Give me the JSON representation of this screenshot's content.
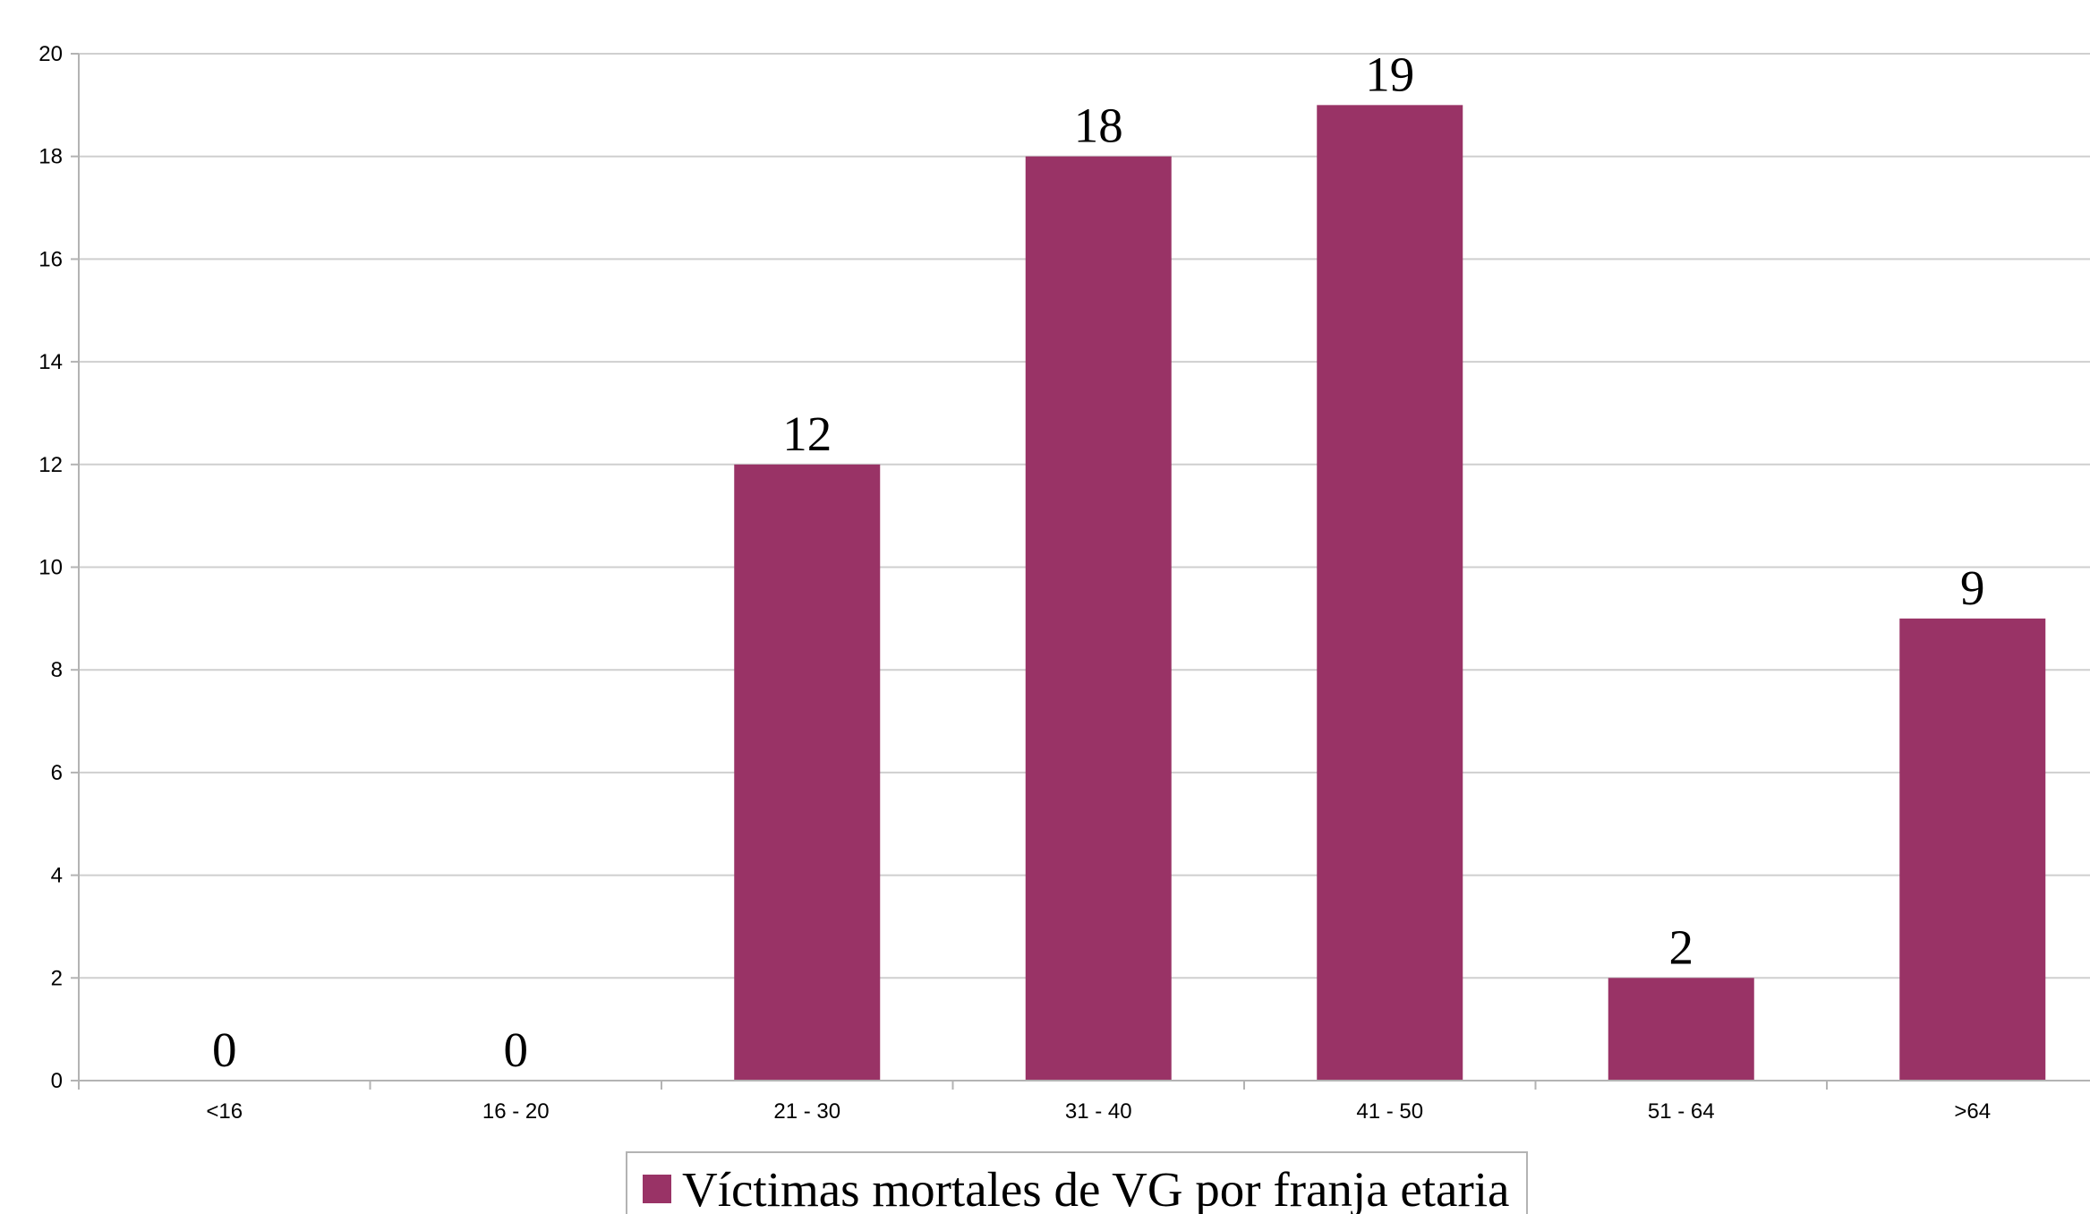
{
  "chart_data": {
    "type": "bar",
    "categories": [
      "<16",
      "16 - 20",
      "21 - 30",
      "31 - 40",
      "41 - 50",
      "51 - 64",
      ">64"
    ],
    "series": [
      {
        "name": "Víctimas mortales de VG por franja etaria",
        "values": [
          0,
          0,
          12,
          18,
          19,
          2,
          9
        ],
        "color": "#993366"
      }
    ],
    "ylim": [
      0,
      20
    ],
    "yticks": [
      0,
      2,
      4,
      6,
      8,
      10,
      12,
      14,
      16,
      18,
      20
    ],
    "grid": true,
    "data_labels": true,
    "legend_position": "bottom"
  }
}
